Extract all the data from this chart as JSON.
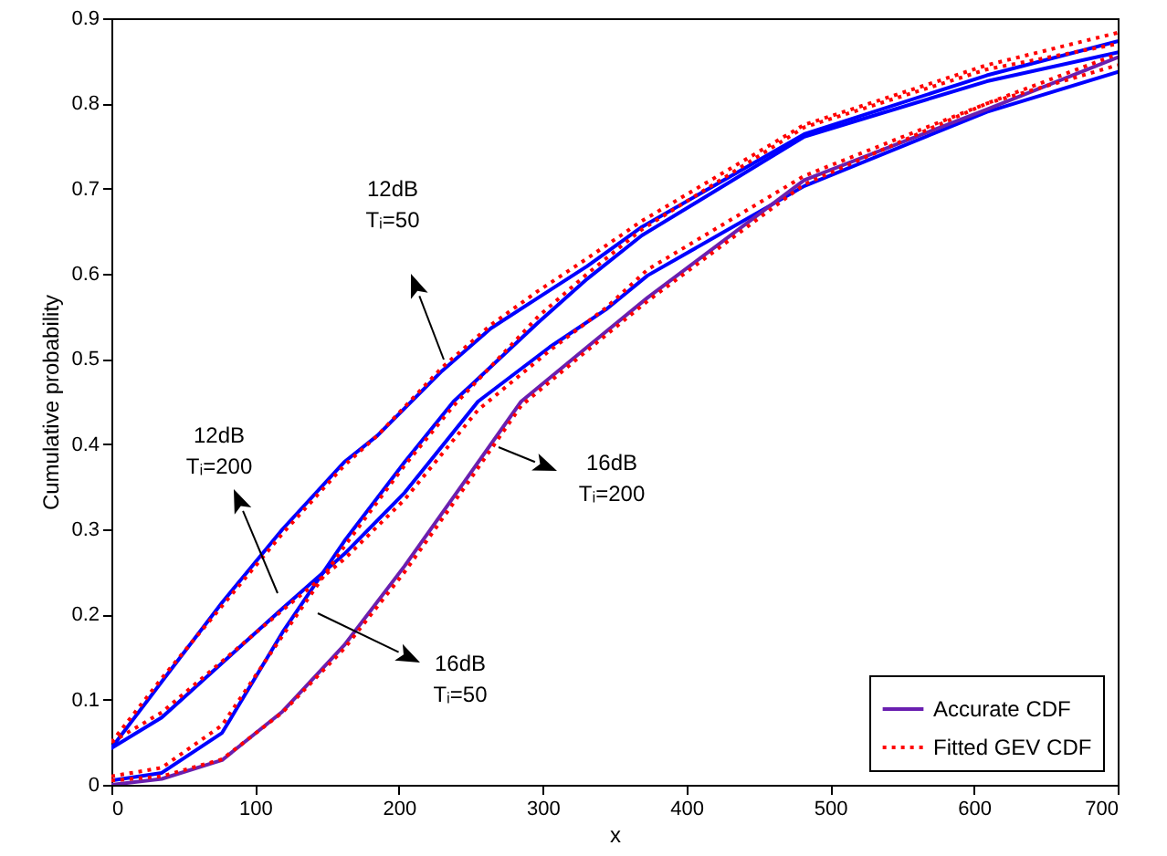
{
  "chart_data": {
    "type": "line",
    "xlabel": "x",
    "ylabel": "Cumulative probability",
    "xlim": [
      0,
      700
    ],
    "xticks": [
      0,
      100,
      200,
      300,
      400,
      500,
      600,
      700
    ],
    "ylim": [
      0,
      0.9
    ],
    "yticks": [
      0,
      0.1,
      0.2,
      0.3,
      0.4,
      0.5,
      0.6,
      0.7,
      0.8,
      0.9
    ],
    "grid": false,
    "legend": "bottom right",
    "marker": "none",
    "series": [
      {
        "color": "#0000ff",
        "line_style": "solid",
        "x": [
          0,
          35,
          77,
          119,
          162,
          185,
          230,
          264,
          297,
          331,
          369,
          482,
          609,
          700
        ],
        "values": [
          0.043,
          0.121,
          0.214,
          0.3,
          0.379,
          0.41,
          0.486,
          0.536,
          0.572,
          0.609,
          0.655,
          0.764,
          0.833,
          0.873
        ]
      },
      {
        "color": "#0000ff",
        "line_style": "solid",
        "x": [
          0,
          35,
          77,
          119,
          162,
          204,
          238,
          297,
          331,
          369,
          482,
          609,
          700
        ],
        "values": [
          0.005,
          0.014,
          0.061,
          0.179,
          0.286,
          0.379,
          0.45,
          0.543,
          0.594,
          0.645,
          0.761,
          0.826,
          0.86
        ]
      },
      {
        "color": "#0000ff",
        "line_style": "solid",
        "x": [
          0,
          35,
          77,
          119,
          162,
          204,
          255,
          305,
          344,
          373,
          482,
          609,
          700
        ],
        "values": [
          0.043,
          0.079,
          0.143,
          0.207,
          0.271,
          0.343,
          0.45,
          0.514,
          0.558,
          0.598,
          0.703,
          0.79,
          0.837
        ]
      },
      {
        "name": "Accurate CDF",
        "color": "#6a1fb0",
        "line_style": "solid",
        "x": [
          0,
          35,
          77,
          119,
          162,
          204,
          246,
          285,
          331,
          373,
          482,
          609,
          700
        ],
        "values": [
          0,
          0.007,
          0.029,
          0.086,
          0.164,
          0.257,
          0.357,
          0.45,
          0.514,
          0.572,
          0.71,
          0.793,
          0.854
        ]
      },
      {
        "name": "Fitted GEV CDF",
        "color": "#ff0000",
        "line_style": "dotted",
        "x": [
          0,
          35,
          77,
          119,
          162,
          185,
          230,
          264,
          297,
          331,
          369,
          482,
          609,
          700
        ],
        "values": [
          0.05,
          0.125,
          0.21,
          0.295,
          0.375,
          0.41,
          0.49,
          0.54,
          0.58,
          0.618,
          0.662,
          0.775,
          0.845,
          0.883
        ]
      },
      {
        "color": "#ff0000",
        "line_style": "dotted",
        "x": [
          0,
          35,
          77,
          119,
          162,
          204,
          238,
          297,
          331,
          369,
          482,
          609,
          700
        ],
        "values": [
          0.01,
          0.02,
          0.07,
          0.175,
          0.28,
          0.375,
          0.445,
          0.55,
          0.6,
          0.652,
          0.772,
          0.84,
          0.87
        ]
      },
      {
        "color": "#ff0000",
        "line_style": "dotted",
        "x": [
          0,
          35,
          77,
          119,
          162,
          204,
          255,
          305,
          344,
          373,
          482,
          609,
          700
        ],
        "values": [
          0.05,
          0.085,
          0.145,
          0.205,
          0.265,
          0.335,
          0.44,
          0.51,
          0.56,
          0.605,
          0.715,
          0.8,
          0.845
        ]
      },
      {
        "color": "#ff0000",
        "line_style": "dotted",
        "x": [
          0,
          35,
          77,
          119,
          162,
          204,
          246,
          285,
          331,
          373,
          482,
          609,
          700
        ],
        "values": [
          0.005,
          0.01,
          0.03,
          0.085,
          0.16,
          0.25,
          0.35,
          0.445,
          0.51,
          0.568,
          0.705,
          0.8,
          0.858
        ]
      }
    ],
    "annotations": [
      "12dB\nTᵢ=50",
      "12dB\nTᵢ=200",
      "16dB\nTᵢ=200",
      "16dB\nTᵢ=50"
    ]
  }
}
